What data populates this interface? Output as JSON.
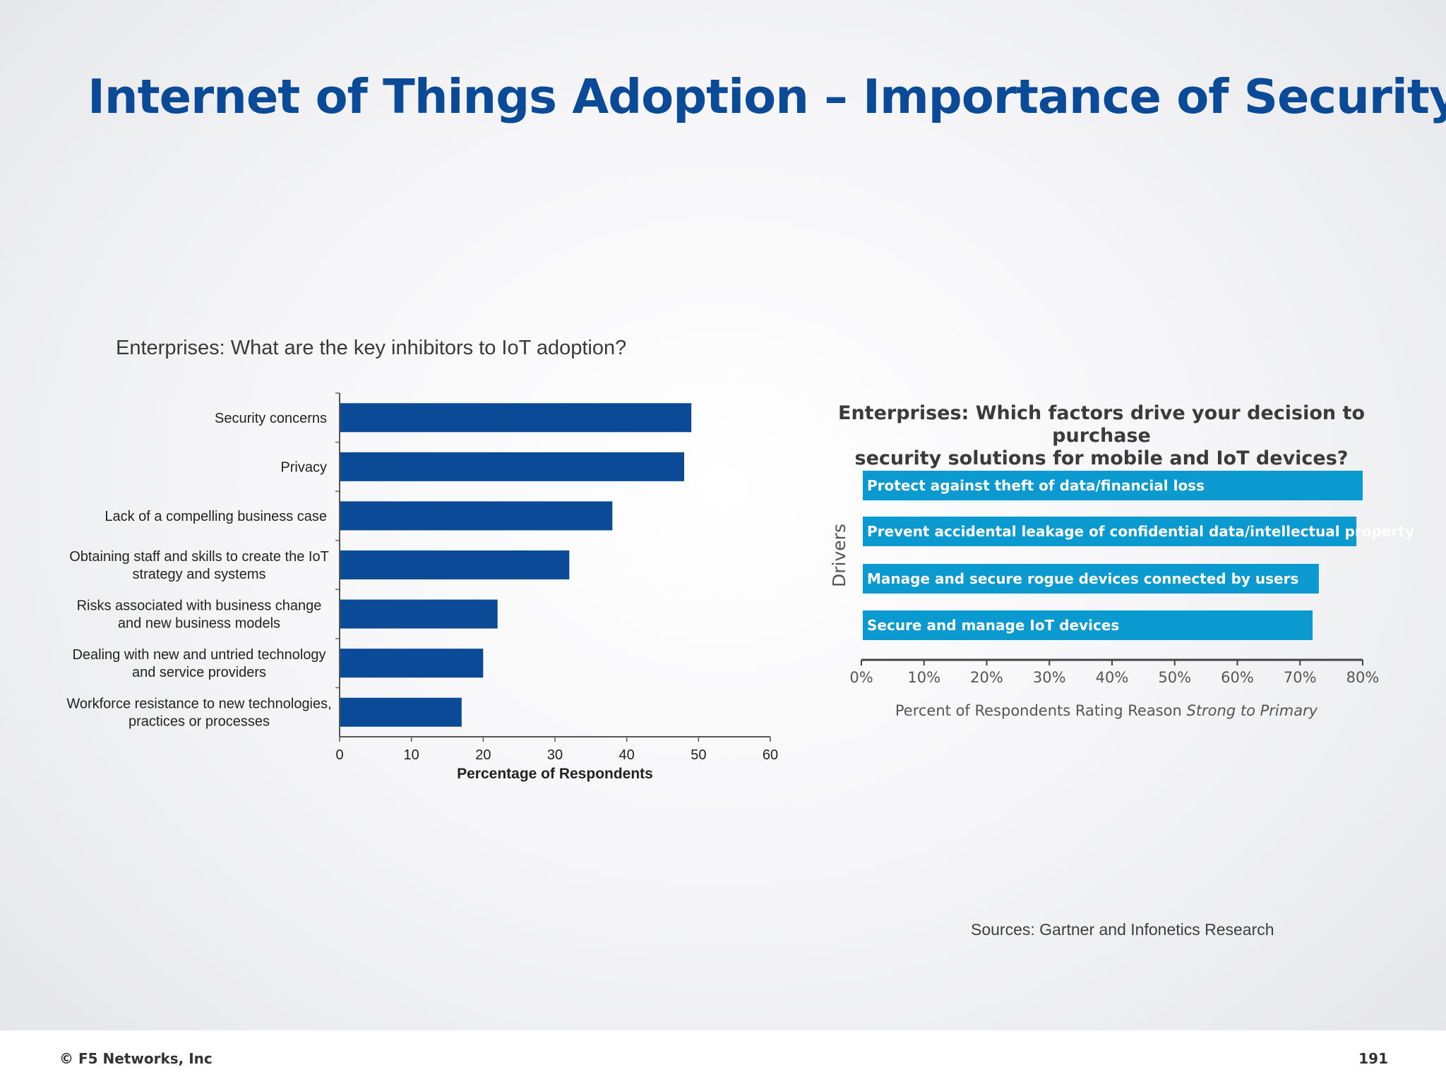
{
  "slide": {
    "title": "Internet of Things Adoption – Importance of Security",
    "sources": "Sources: Gartner and Infonetics Research",
    "copyright": "© F5 Networks, Inc",
    "page_number": "191"
  },
  "colors": {
    "title": "#0a4a96",
    "chart1_bar": "#0a4a96",
    "chart2_bar": "#0a9ad0"
  },
  "chart_data": [
    {
      "type": "bar",
      "orientation": "horizontal",
      "title": "Enterprises: What are the key inhibitors to IoT adoption?",
      "categories": [
        [
          "Security concerns"
        ],
        [
          "Privacy"
        ],
        [
          "Lack of a compelling business case"
        ],
        [
          "Obtaining staff and skills to create the IoT",
          "strategy and systems"
        ],
        [
          "Risks associated with business change",
          "and new business models"
        ],
        [
          "Dealing with new and untried technology",
          "and service providers"
        ],
        [
          "Workforce resistance to new technologies,",
          "practices or processes"
        ]
      ],
      "values": [
        49,
        48,
        38,
        32,
        22,
        20,
        17
      ],
      "xlabel": "Percentage of Respondents",
      "ylabel": "",
      "xlim": [
        0,
        60
      ],
      "xticks": [
        "0",
        "10",
        "20",
        "30",
        "40",
        "50",
        "60"
      ],
      "grid": false
    },
    {
      "type": "bar",
      "orientation": "horizontal",
      "title": [
        "Enterprises: Which factors drive your decision to purchase",
        "security solutions for mobile and IoT devices?"
      ],
      "categories": [
        "Protect against theft of data/financial loss",
        "Prevent accidental leakage of confidential data/intellectual property",
        "Manage and secure rogue devices connected by users",
        "Secure and manage IoT devices"
      ],
      "values": [
        80,
        79,
        73,
        72
      ],
      "xlabel_prefix": "Percent of Respondents Rating Reason ",
      "xlabel_italic": "Strong to Primary",
      "ylabel": "Drivers",
      "xlim": [
        0,
        80
      ],
      "xticks": [
        "0%",
        "10%",
        "20%",
        "30%",
        "40%",
        "50%",
        "60%",
        "70%",
        "80%"
      ],
      "grid": false
    }
  ]
}
